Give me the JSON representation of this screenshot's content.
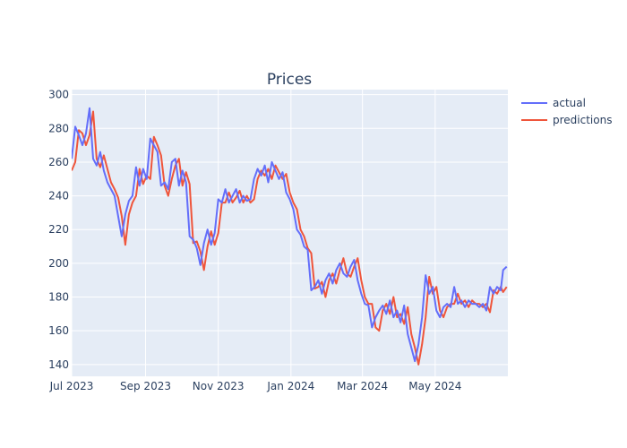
{
  "chart_data": {
    "type": "line",
    "title": "Prices",
    "xlabel": "",
    "ylabel": "",
    "x_range": [
      "2023-07-01",
      "2024-07-01"
    ],
    "ylim": [
      133,
      303
    ],
    "y_ticks": [
      140,
      160,
      180,
      200,
      220,
      240,
      260,
      280,
      300
    ],
    "x_ticks": [
      {
        "date": "2023-07-01",
        "label": "Jul 2023"
      },
      {
        "date": "2023-09-01",
        "label": "Sep 2023"
      },
      {
        "date": "2023-11-01",
        "label": "Nov 2023"
      },
      {
        "date": "2024-01-01",
        "label": "Jan 2024"
      },
      {
        "date": "2024-03-01",
        "label": "Mar 2024"
      },
      {
        "date": "2024-05-01",
        "label": "May 2024"
      }
    ],
    "grid": true,
    "legend_position": "top-right",
    "colors": {
      "actual": "#636efa",
      "predictions": "#ef553b",
      "plot_bg": "#e5ecf6",
      "grid": "#ffffff"
    },
    "series": [
      {
        "name": "actual",
        "points": [
          [
            "2023-07-01",
            262
          ],
          [
            "2023-07-04",
            281
          ],
          [
            "2023-07-07",
            276
          ],
          [
            "2023-07-10",
            270
          ],
          [
            "2023-07-13",
            277
          ],
          [
            "2023-07-16",
            292
          ],
          [
            "2023-07-19",
            262
          ],
          [
            "2023-07-22",
            258
          ],
          [
            "2023-07-25",
            266
          ],
          [
            "2023-07-28",
            255
          ],
          [
            "2023-07-31",
            248
          ],
          [
            "2023-08-03",
            244
          ],
          [
            "2023-08-06",
            240
          ],
          [
            "2023-08-09",
            228
          ],
          [
            "2023-08-12",
            216
          ],
          [
            "2023-08-15",
            229
          ],
          [
            "2023-08-18",
            237
          ],
          [
            "2023-08-21",
            240
          ],
          [
            "2023-08-24",
            257
          ],
          [
            "2023-08-27",
            246
          ],
          [
            "2023-08-30",
            256
          ],
          [
            "2023-09-02",
            250
          ],
          [
            "2023-09-05",
            274
          ],
          [
            "2023-09-08",
            270
          ],
          [
            "2023-09-11",
            266
          ],
          [
            "2023-09-14",
            246
          ],
          [
            "2023-09-17",
            248
          ],
          [
            "2023-09-20",
            244
          ],
          [
            "2023-09-23",
            260
          ],
          [
            "2023-09-26",
            262
          ],
          [
            "2023-09-29",
            246
          ],
          [
            "2023-10-02",
            255
          ],
          [
            "2023-10-05",
            248
          ],
          [
            "2023-10-08",
            216
          ],
          [
            "2023-10-11",
            214
          ],
          [
            "2023-10-14",
            209
          ],
          [
            "2023-10-17",
            199
          ],
          [
            "2023-10-20",
            212
          ],
          [
            "2023-10-23",
            220
          ],
          [
            "2023-10-26",
            211
          ],
          [
            "2023-10-29",
            218
          ],
          [
            "2023-11-01",
            238
          ],
          [
            "2023-11-04",
            236
          ],
          [
            "2023-11-07",
            244
          ],
          [
            "2023-11-10",
            236
          ],
          [
            "2023-11-13",
            240
          ],
          [
            "2023-11-16",
            244
          ],
          [
            "2023-11-19",
            236
          ],
          [
            "2023-11-22",
            240
          ],
          [
            "2023-11-25",
            237
          ],
          [
            "2023-11-28",
            238
          ],
          [
            "2023-12-01",
            250
          ],
          [
            "2023-12-04",
            256
          ],
          [
            "2023-12-07",
            252
          ],
          [
            "2023-12-10",
            258
          ],
          [
            "2023-12-13",
            248
          ],
          [
            "2023-12-16",
            260
          ],
          [
            "2023-12-19",
            255
          ],
          [
            "2023-12-22",
            250
          ],
          [
            "2023-12-25",
            254
          ],
          [
            "2023-12-28",
            242
          ],
          [
            "2023-12-31",
            238
          ],
          [
            "2024-01-03",
            232
          ],
          [
            "2024-01-06",
            220
          ],
          [
            "2024-01-09",
            217
          ],
          [
            "2024-01-12",
            210
          ],
          [
            "2024-01-15",
            208
          ],
          [
            "2024-01-18",
            184
          ],
          [
            "2024-01-21",
            186
          ],
          [
            "2024-01-24",
            190
          ],
          [
            "2024-01-27",
            182
          ],
          [
            "2024-01-30",
            190
          ],
          [
            "2024-02-02",
            194
          ],
          [
            "2024-02-05",
            188
          ],
          [
            "2024-02-08",
            196
          ],
          [
            "2024-02-11",
            200
          ],
          [
            "2024-02-14",
            194
          ],
          [
            "2024-02-17",
            192
          ],
          [
            "2024-02-20",
            198
          ],
          [
            "2024-02-23",
            202
          ],
          [
            "2024-02-26",
            190
          ],
          [
            "2024-02-29",
            182
          ],
          [
            "2024-03-03",
            176
          ],
          [
            "2024-03-06",
            175
          ],
          [
            "2024-03-09",
            162
          ],
          [
            "2024-03-12",
            168
          ],
          [
            "2024-03-15",
            172
          ],
          [
            "2024-03-18",
            175
          ],
          [
            "2024-03-21",
            170
          ],
          [
            "2024-03-24",
            178
          ],
          [
            "2024-03-27",
            168
          ],
          [
            "2024-03-30",
            172
          ],
          [
            "2024-04-02",
            165
          ],
          [
            "2024-04-05",
            175
          ],
          [
            "2024-04-08",
            158
          ],
          [
            "2024-04-11",
            150
          ],
          [
            "2024-04-14",
            142
          ],
          [
            "2024-04-17",
            152
          ],
          [
            "2024-04-20",
            168
          ],
          [
            "2024-04-23",
            193
          ],
          [
            "2024-04-26",
            182
          ],
          [
            "2024-04-29",
            186
          ],
          [
            "2024-05-02",
            172
          ],
          [
            "2024-05-05",
            168
          ],
          [
            "2024-05-08",
            174
          ],
          [
            "2024-05-11",
            176
          ],
          [
            "2024-05-14",
            174
          ],
          [
            "2024-05-17",
            186
          ],
          [
            "2024-05-20",
            176
          ],
          [
            "2024-05-23",
            178
          ],
          [
            "2024-05-26",
            174
          ],
          [
            "2024-05-29",
            178
          ],
          [
            "2024-06-01",
            176
          ],
          [
            "2024-06-04",
            176
          ],
          [
            "2024-06-07",
            174
          ],
          [
            "2024-06-10",
            176
          ],
          [
            "2024-06-13",
            172
          ],
          [
            "2024-06-16",
            186
          ],
          [
            "2024-06-19",
            182
          ],
          [
            "2024-06-22",
            186
          ],
          [
            "2024-06-25",
            184
          ],
          [
            "2024-06-27",
            196
          ],
          [
            "2024-06-30",
            198
          ]
        ]
      },
      {
        "name": "predictions",
        "points": [
          [
            "2023-07-01",
            255
          ],
          [
            "2023-07-04",
            260
          ],
          [
            "2023-07-07",
            279
          ],
          [
            "2023-07-10",
            277
          ],
          [
            "2023-07-13",
            270
          ],
          [
            "2023-07-16",
            276
          ],
          [
            "2023-07-19",
            290
          ],
          [
            "2023-07-22",
            262
          ],
          [
            "2023-07-25",
            257
          ],
          [
            "2023-07-28",
            264
          ],
          [
            "2023-07-31",
            256
          ],
          [
            "2023-08-03",
            248
          ],
          [
            "2023-08-06",
            244
          ],
          [
            "2023-08-09",
            239
          ],
          [
            "2023-08-12",
            228
          ],
          [
            "2023-08-15",
            211
          ],
          [
            "2023-08-18",
            229
          ],
          [
            "2023-08-21",
            236
          ],
          [
            "2023-08-24",
            240
          ],
          [
            "2023-08-27",
            256
          ],
          [
            "2023-08-30",
            247
          ],
          [
            "2023-09-02",
            252
          ],
          [
            "2023-09-05",
            250
          ],
          [
            "2023-09-08",
            275
          ],
          [
            "2023-09-11",
            270
          ],
          [
            "2023-09-14",
            264
          ],
          [
            "2023-09-17",
            246
          ],
          [
            "2023-09-20",
            240
          ],
          [
            "2023-09-23",
            250
          ],
          [
            "2023-09-26",
            258
          ],
          [
            "2023-09-29",
            262
          ],
          [
            "2023-10-02",
            246
          ],
          [
            "2023-10-05",
            254
          ],
          [
            "2023-10-08",
            247
          ],
          [
            "2023-10-11",
            212
          ],
          [
            "2023-10-14",
            213
          ],
          [
            "2023-10-17",
            207
          ],
          [
            "2023-10-20",
            196
          ],
          [
            "2023-10-23",
            210
          ],
          [
            "2023-10-26",
            219
          ],
          [
            "2023-10-29",
            211
          ],
          [
            "2023-11-01",
            218
          ],
          [
            "2023-11-04",
            236
          ],
          [
            "2023-11-07",
            236
          ],
          [
            "2023-11-10",
            242
          ],
          [
            "2023-11-13",
            236
          ],
          [
            "2023-11-16",
            239
          ],
          [
            "2023-11-19",
            243
          ],
          [
            "2023-11-22",
            236
          ],
          [
            "2023-11-25",
            240
          ],
          [
            "2023-11-28",
            236
          ],
          [
            "2023-12-01",
            238
          ],
          [
            "2023-12-04",
            250
          ],
          [
            "2023-12-07",
            255
          ],
          [
            "2023-12-10",
            252
          ],
          [
            "2023-12-13",
            256
          ],
          [
            "2023-12-16",
            250
          ],
          [
            "2023-12-19",
            258
          ],
          [
            "2023-12-22",
            254
          ],
          [
            "2023-12-25",
            250
          ],
          [
            "2023-12-28",
            253
          ],
          [
            "2023-12-31",
            242
          ],
          [
            "2024-01-03",
            236
          ],
          [
            "2024-01-06",
            232
          ],
          [
            "2024-01-09",
            220
          ],
          [
            "2024-01-12",
            216
          ],
          [
            "2024-01-15",
            209
          ],
          [
            "2024-01-18",
            206
          ],
          [
            "2024-01-21",
            185
          ],
          [
            "2024-01-24",
            186
          ],
          [
            "2024-01-27",
            189
          ],
          [
            "2024-01-30",
            180
          ],
          [
            "2024-02-02",
            190
          ],
          [
            "2024-02-05",
            194
          ],
          [
            "2024-02-08",
            188
          ],
          [
            "2024-02-11",
            196
          ],
          [
            "2024-02-14",
            203
          ],
          [
            "2024-02-17",
            194
          ],
          [
            "2024-02-20",
            192
          ],
          [
            "2024-02-23",
            198
          ],
          [
            "2024-02-26",
            203
          ],
          [
            "2024-02-29",
            190
          ],
          [
            "2024-03-03",
            180
          ],
          [
            "2024-03-06",
            176
          ],
          [
            "2024-03-09",
            176
          ],
          [
            "2024-03-12",
            162
          ],
          [
            "2024-03-15",
            160
          ],
          [
            "2024-03-18",
            172
          ],
          [
            "2024-03-21",
            176
          ],
          [
            "2024-03-24",
            170
          ],
          [
            "2024-03-27",
            180
          ],
          [
            "2024-03-30",
            168
          ],
          [
            "2024-04-02",
            170
          ],
          [
            "2024-04-05",
            164
          ],
          [
            "2024-04-08",
            174
          ],
          [
            "2024-04-11",
            158
          ],
          [
            "2024-04-14",
            150
          ],
          [
            "2024-04-17",
            140
          ],
          [
            "2024-04-20",
            152
          ],
          [
            "2024-04-23",
            168
          ],
          [
            "2024-04-26",
            192
          ],
          [
            "2024-04-29",
            182
          ],
          [
            "2024-05-02",
            186
          ],
          [
            "2024-05-05",
            172
          ],
          [
            "2024-05-08",
            168
          ],
          [
            "2024-05-11",
            174
          ],
          [
            "2024-05-14",
            176
          ],
          [
            "2024-05-17",
            176
          ],
          [
            "2024-05-20",
            182
          ],
          [
            "2024-05-23",
            176
          ],
          [
            "2024-05-26",
            178
          ],
          [
            "2024-05-29",
            174
          ],
          [
            "2024-06-01",
            178
          ],
          [
            "2024-06-04",
            176
          ],
          [
            "2024-06-07",
            176
          ],
          [
            "2024-06-10",
            174
          ],
          [
            "2024-06-13",
            176
          ],
          [
            "2024-06-16",
            171
          ],
          [
            "2024-06-19",
            184
          ],
          [
            "2024-06-22",
            182
          ],
          [
            "2024-06-25",
            186
          ],
          [
            "2024-06-27",
            183
          ],
          [
            "2024-06-30",
            186
          ]
        ]
      }
    ]
  }
}
